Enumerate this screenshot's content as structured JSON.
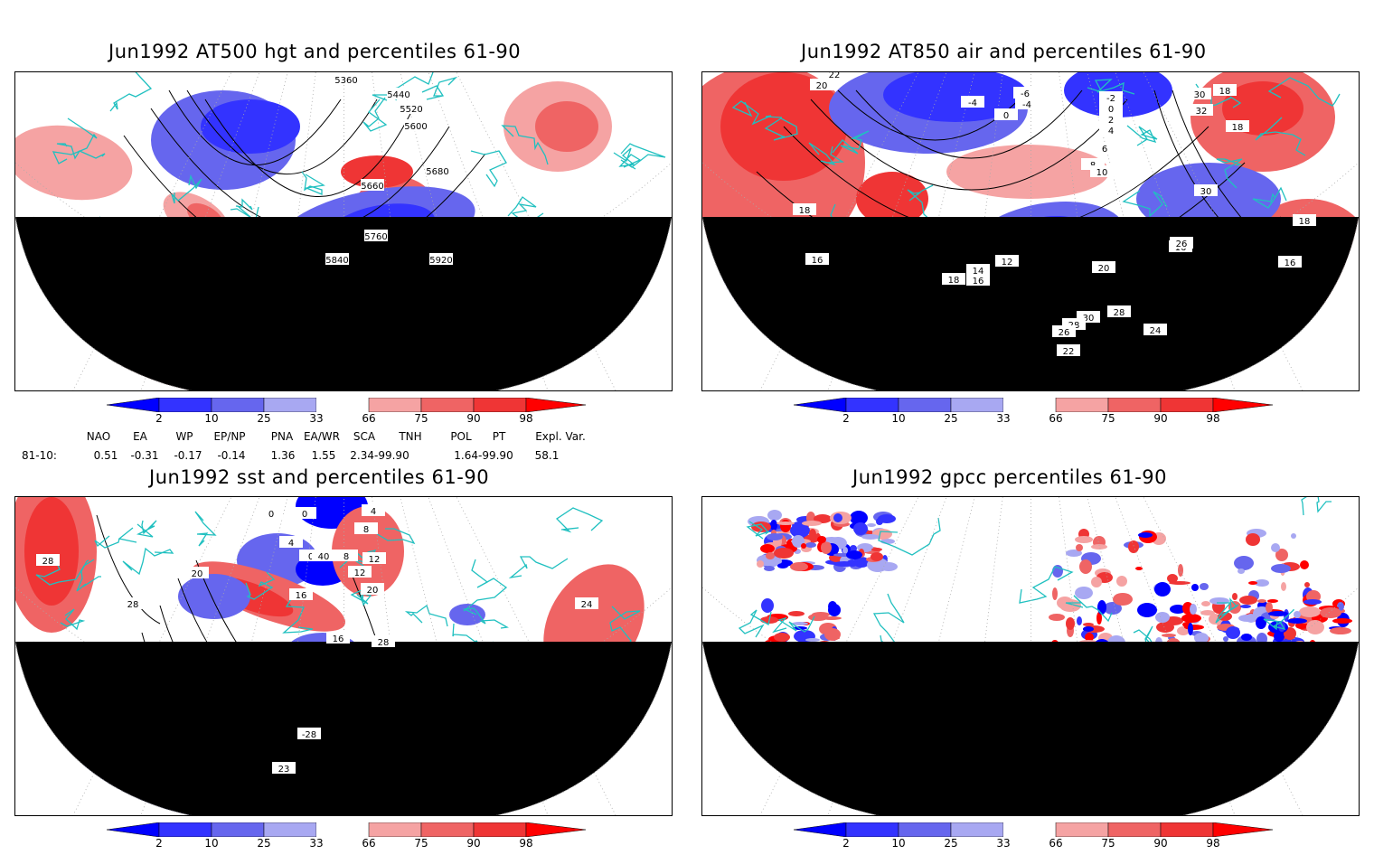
{
  "panels": [
    {
      "title": "Jun1992 AT500 hgt and percentiles 61-90",
      "contour_labels": [
        "5360",
        "5440",
        "5520",
        "5600",
        "5680",
        "5660",
        "5760",
        "5840",
        "5920"
      ]
    },
    {
      "title": "Jun1992 AT850 air and percentiles 61-90",
      "contour_labels": [
        "22",
        "20",
        "-4",
        "0",
        "-6",
        "-4",
        "-2",
        "0",
        "2",
        "4",
        "6",
        "8",
        "10",
        "12",
        "14",
        "16",
        "18",
        "16",
        "18",
        "16",
        "26",
        "28",
        "30",
        "28",
        "26",
        "24",
        "22",
        "20",
        "18",
        "30",
        "32",
        "18",
        "30",
        "18",
        "16"
      ]
    },
    {
      "title": "Jun1992 sst and percentiles 61-90",
      "contour_labels": [
        "28",
        "0",
        "0",
        "4",
        "0",
        "40",
        "8",
        "12",
        "4",
        "8",
        "12",
        "16",
        "16",
        "20",
        "20",
        "28",
        "28",
        "24",
        "-28",
        "23"
      ]
    },
    {
      "title": "Jun1992 gpcc percentiles 61-90",
      "contour_labels": []
    }
  ],
  "colorbar": {
    "labels": [
      "2",
      "10",
      "25",
      "33",
      "66",
      "75",
      "90",
      "98"
    ],
    "colors": {
      "blue_dark": "#0000ff",
      "blue_mid": "#3333ff",
      "blue_light": "#6666ee",
      "blue_pale": "#a8a8f2",
      "red_pale": "#f5a3a3",
      "red_light": "#ef6464",
      "red_mid": "#ef3535",
      "red_dark": "#ff0000"
    }
  },
  "indices": {
    "headers": [
      "NAO",
      "EA",
      "WP",
      "EP/NP",
      "PNA",
      "EA/WR",
      "SCA",
      "TNH",
      "POL",
      "PT",
      "Expl. Var."
    ],
    "row_label": "81-10:",
    "values": [
      "0.51",
      "-0.31",
      "-0.17",
      "-0.14",
      "1.36",
      "1.55",
      "2.34-99.90",
      "1.64-99.90",
      "58.1"
    ]
  },
  "map_colors": {
    "coast": "#20c0c0",
    "contour": "#000000",
    "grid": "#aaaaaa"
  }
}
